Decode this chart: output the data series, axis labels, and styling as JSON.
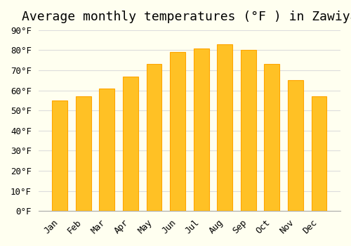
{
  "title": "Average monthly temperatures (°F ) in Zawiya",
  "months": [
    "Jan",
    "Feb",
    "Mar",
    "Apr",
    "May",
    "Jun",
    "Jul",
    "Aug",
    "Sep",
    "Oct",
    "Nov",
    "Dec"
  ],
  "values": [
    55,
    57,
    61,
    67,
    73,
    79,
    81,
    83,
    80,
    73,
    65,
    57
  ],
  "bar_color": "#FFC125",
  "bar_edge_color": "#FFA500",
  "ylim": [
    0,
    90
  ],
  "yticks": [
    0,
    10,
    20,
    30,
    40,
    50,
    60,
    70,
    80,
    90
  ],
  "background_color": "#FFFFF0",
  "grid_color": "#DDDDDD",
  "title_fontsize": 13,
  "tick_fontsize": 9
}
